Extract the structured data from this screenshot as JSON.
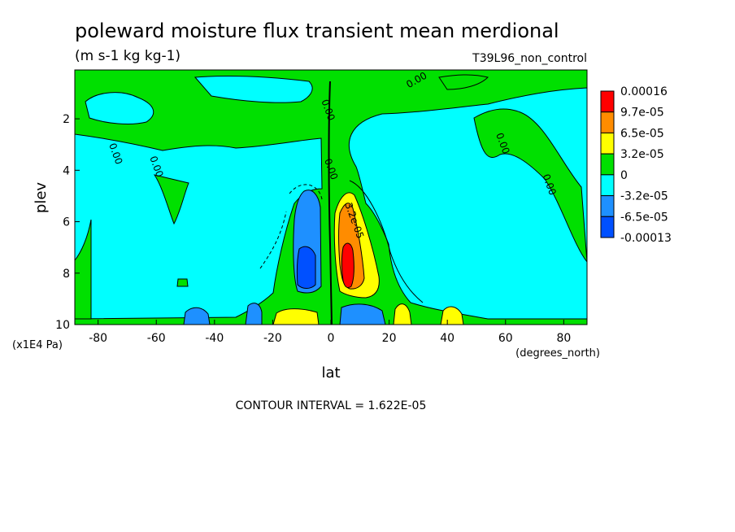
{
  "chart_data": {
    "type": "heatmap",
    "title": "poleward moisture flux transient mean merdional",
    "units": "(m s-1 kg kg-1)",
    "dataset": "T39L96_non_control",
    "xlabel": "lat",
    "x_units": "(degrees_north)",
    "ylabel": "plev",
    "y_units": "(x1E4 Pa)",
    "footer": "CONTOUR INTERVAL = 1.622E-05",
    "xlim": [
      -88,
      88
    ],
    "ylim": [
      10,
      0.1
    ],
    "x_ticks": [
      -80,
      -60,
      -40,
      -20,
      0,
      20,
      40,
      60,
      80
    ],
    "y_ticks": [
      2,
      4,
      6,
      8,
      10
    ],
    "grid": false,
    "legend_position": "right",
    "colorbar": {
      "labels": [
        "0.00016",
        "9.7e-05",
        "6.5e-05",
        "3.2e-05",
        "0",
        "-3.2e-05",
        "-6.5e-05",
        "-0.00013"
      ],
      "colors": [
        "#ff0000",
        "#ff8c00",
        "#ffff00",
        "#00e000",
        "#00ffff",
        "#1e90ff",
        "#0050ff"
      ]
    },
    "contour_labels": [
      {
        "text": "0.00",
        "lat": 30,
        "plev": 0.6
      },
      {
        "text": "0.00",
        "lat": -2,
        "plev": 1.7
      },
      {
        "text": "0.00",
        "lat": -75,
        "plev": 3.4
      },
      {
        "text": "0.00",
        "lat": -61,
        "plev": 3.9
      },
      {
        "text": "0.00",
        "lat": -1,
        "plev": 4.0
      },
      {
        "text": "0.00",
        "lat": 58,
        "plev": 3.0
      },
      {
        "text": "0.00",
        "lat": 74,
        "plev": 4.6
      },
      {
        "text": "3.2e-05",
        "lat": 7,
        "plev": 6.0
      }
    ],
    "regions": [
      {
        "value": "0 to 3.2e-05",
        "lat": [
          -88,
          88
        ],
        "plev": [
          0.1,
          10
        ]
      },
      {
        "value": "-3.2e-05 to 0",
        "lat": [
          -88,
          -8
        ],
        "plev": [
          1.0,
          10
        ]
      },
      {
        "value": "-3.2e-05 to 0",
        "lat": [
          28,
          88
        ],
        "plev": [
          0.7,
          9.5
        ]
      },
      {
        "value": "-6.5e-05 to -3.2e-05",
        "lat": [
          -12,
          -2
        ],
        "plev": [
          5.0,
          8.5
        ]
      },
      {
        "value": "-0.00013 to -6.5e-05",
        "lat": [
          -10,
          -5
        ],
        "plev": [
          7.2,
          8.2
        ]
      },
      {
        "value": "3.2e-05 to 6.5e-05",
        "lat": [
          2,
          16
        ],
        "plev": [
          4.8,
          8.9
        ]
      },
      {
        "value": "6.5e-05 to 9.7e-05",
        "lat": [
          3,
          11
        ],
        "plev": [
          5.5,
          8.6
        ]
      },
      {
        "value": "9.7e-05 to 0.00016",
        "lat": [
          4,
          9
        ],
        "plev": [
          6.8,
          8.5
        ]
      }
    ]
  }
}
